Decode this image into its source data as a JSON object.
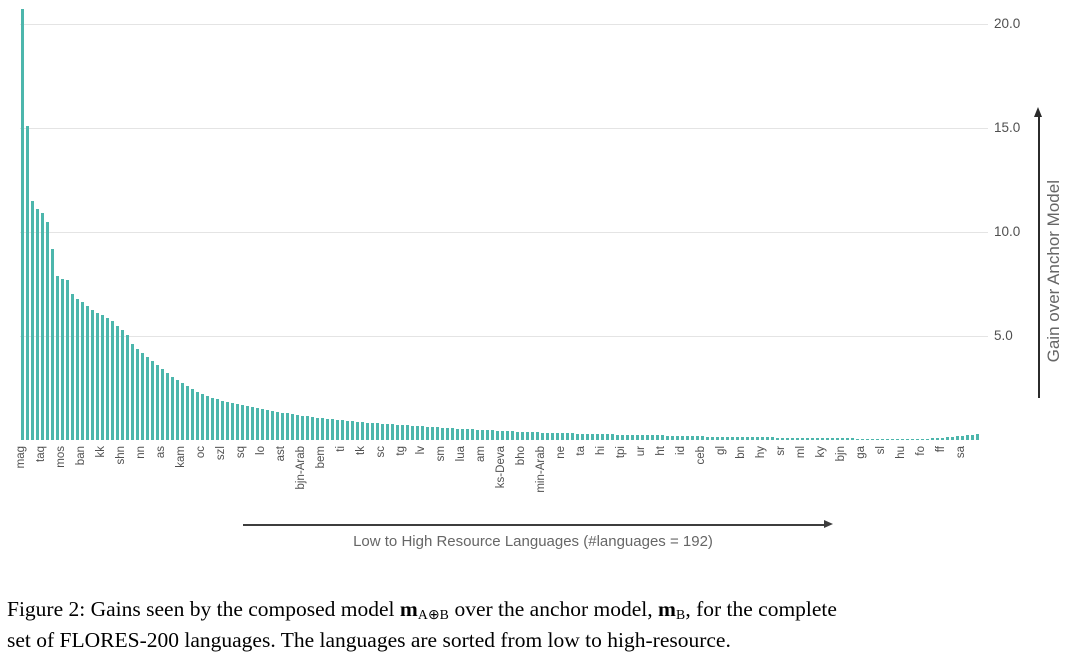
{
  "chart_data": {
    "type": "bar",
    "title": "",
    "xlabel": "Low to High Resource Languages (#languages = 192)",
    "ylabel": "Gain over Anchor Model",
    "n_bars": 192,
    "bar_color": "#4db6ac",
    "grid": "horizontal",
    "legend": "none",
    "ylim": [
      0,
      21
    ],
    "yticks": [
      20.0,
      15.0,
      10.0,
      5.0
    ],
    "ytick_labels": [
      "20.0",
      "15.0",
      "10.0",
      "5.0"
    ],
    "xtick_every": 4,
    "xtick_labels": [
      "mag",
      "taq",
      "mos",
      "ban",
      "kk",
      "shn",
      "nn",
      "as",
      "kam",
      "oc",
      "szl",
      "sq",
      "lo",
      "ast",
      "bjn-Arab",
      "bem",
      "ti",
      "tk",
      "sc",
      "tg",
      "lv",
      "sm",
      "lua",
      "am",
      "ks-Deva",
      "bho",
      "min-Arab",
      "ne",
      "ta",
      "hi",
      "tpi",
      "ur",
      "ht",
      "id",
      "ceb",
      "gl",
      "bn",
      "hy",
      "sr",
      "ml",
      "ky",
      "bjn",
      "ga",
      "sl",
      "hu",
      "fo",
      "ff",
      "sa"
    ],
    "values": [
      20.7,
      15.1,
      11.5,
      11.1,
      10.9,
      10.5,
      9.2,
      7.9,
      7.75,
      7.7,
      7.0,
      6.8,
      6.65,
      6.45,
      6.25,
      6.1,
      6.0,
      5.85,
      5.7,
      5.5,
      5.3,
      5.05,
      4.6,
      4.4,
      4.2,
      4.0,
      3.8,
      3.6,
      3.4,
      3.2,
      3.05,
      2.9,
      2.75,
      2.6,
      2.45,
      2.3,
      2.2,
      2.1,
      2.0,
      1.95,
      1.9,
      1.85,
      1.8,
      1.75,
      1.7,
      1.65,
      1.6,
      1.55,
      1.5,
      1.45,
      1.4,
      1.36,
      1.32,
      1.28,
      1.24,
      1.2,
      1.17,
      1.14,
      1.11,
      1.08,
      1.05,
      1.02,
      1.0,
      0.97,
      0.95,
      0.92,
      0.9,
      0.88,
      0.86,
      0.84,
      0.82,
      0.8,
      0.78,
      0.76,
      0.75,
      0.73,
      0.72,
      0.7,
      0.69,
      0.67,
      0.66,
      0.64,
      0.63,
      0.61,
      0.6,
      0.58,
      0.57,
      0.55,
      0.54,
      0.52,
      0.51,
      0.5,
      0.48,
      0.47,
      0.46,
      0.45,
      0.44,
      0.43,
      0.42,
      0.41,
      0.4,
      0.39,
      0.38,
      0.37,
      0.36,
      0.35,
      0.35,
      0.34,
      0.33,
      0.32,
      0.32,
      0.31,
      0.3,
      0.3,
      0.29,
      0.28,
      0.28,
      0.27,
      0.27,
      0.26,
      0.26,
      0.25,
      0.25,
      0.24,
      0.24,
      0.23,
      0.23,
      0.22,
      0.22,
      0.21,
      0.21,
      0.2,
      0.2,
      0.19,
      0.19,
      0.18,
      0.18,
      0.17,
      0.17,
      0.16,
      0.16,
      0.16,
      0.15,
      0.15,
      0.15,
      0.14,
      0.14,
      0.14,
      0.13,
      0.13,
      0.13,
      0.12,
      0.12,
      0.12,
      0.11,
      0.11,
      0.11,
      0.1,
      0.1,
      0.1,
      0.1,
      0.09,
      0.09,
      0.09,
      0.08,
      0.08,
      0.08,
      0.07,
      0.07,
      0.07,
      0.06,
      0.06,
      0.05,
      0.05,
      0.04,
      0.04,
      0.03,
      0.03,
      0.03,
      0.04,
      0.05,
      0.06,
      0.08,
      0.1,
      0.12,
      0.14,
      0.16,
      0.18,
      0.2,
      0.22,
      0.25,
      0.28
    ]
  },
  "caption": {
    "lines": [
      [
        {
          "t": "Figure 2: Gains seen by the composed model "
        },
        {
          "t": "m",
          "s": "bm"
        },
        {
          "t": "A⊕B",
          "s": "sub"
        },
        {
          "t": " over the anchor model, "
        },
        {
          "t": "m",
          "s": "bm"
        },
        {
          "t": "B",
          "s": "sub"
        },
        {
          "t": ", for the complete"
        }
      ],
      [
        {
          "t": "set of FLORES-200 languages. The languages are sorted from low to high-resource."
        }
      ]
    ]
  }
}
